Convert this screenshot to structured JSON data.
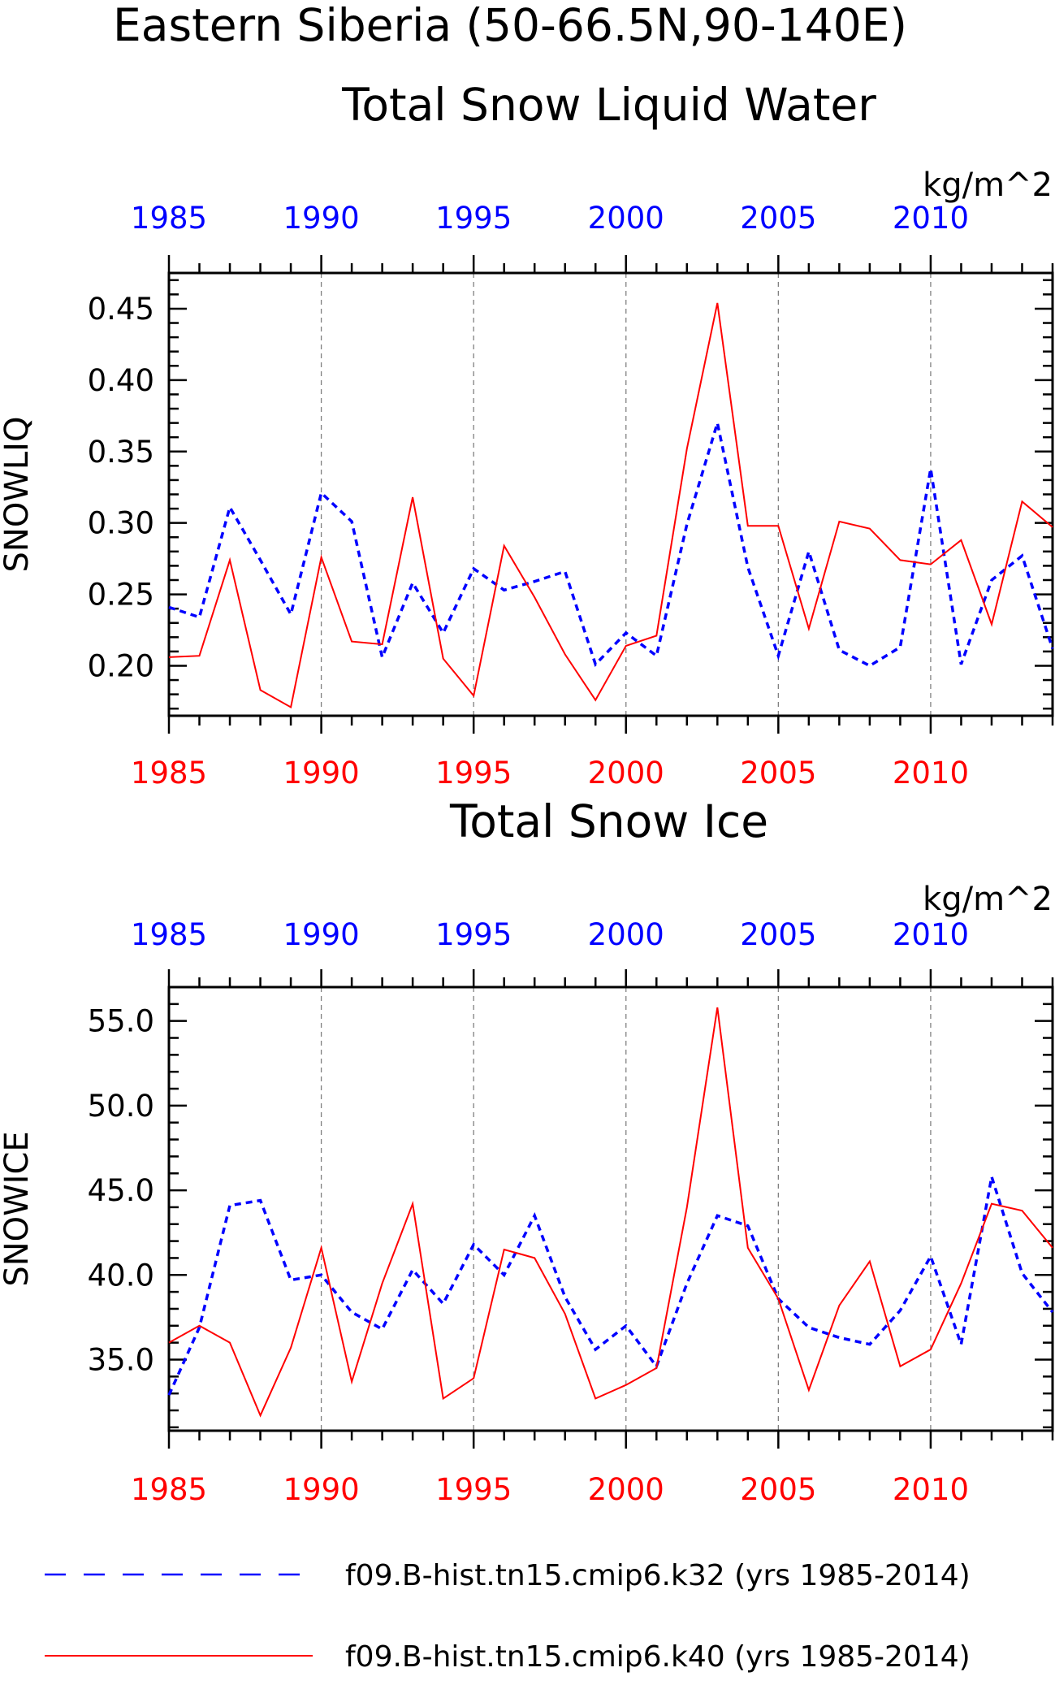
{
  "figure": {
    "title": "Eastern Siberia (50-66.5N,90-140E)"
  },
  "legend": {
    "placement": "bottom-left",
    "items": [
      {
        "label": "f09.B-hist.tn15.cmip6.k32 (yrs 1985-2014)",
        "color": "#0000ff",
        "style": "dashed"
      },
      {
        "label": "f09.B-hist.tn15.cmip6.k40 (yrs 1985-2014)",
        "color": "#ff0000",
        "style": "solid"
      }
    ]
  },
  "colors": {
    "k32": "#0000ff",
    "k40": "#ff0000",
    "axis": "#000000",
    "grid": "#808080"
  },
  "chart_data": [
    {
      "type": "line",
      "title": "Total Snow Liquid Water",
      "units": "kg/m^2",
      "ylabel": "SNOWLIQ",
      "xlim": [
        1985,
        2014
      ],
      "ylim": [
        0.165,
        0.475
      ],
      "yticks": [
        "0.20",
        "0.25",
        "0.30",
        "0.35",
        "0.40",
        "0.45"
      ],
      "xticks": [
        "1985",
        "1990",
        "1995",
        "2000",
        "2005",
        "2010"
      ],
      "grid": "dashed vertical at 1990,1995,2000,2005,2010",
      "x": [
        1985,
        1986,
        1987,
        1988,
        1989,
        1990,
        1991,
        1992,
        1993,
        1994,
        1995,
        1996,
        1997,
        1998,
        1999,
        2000,
        2001,
        2002,
        2003,
        2004,
        2005,
        2006,
        2007,
        2008,
        2009,
        2010,
        2011,
        2012,
        2013,
        2014
      ],
      "series": [
        {
          "name": "f09.B-hist.tn15.cmip6.k32 (yrs 1985-2014)",
          "color": "#0000ff",
          "style": "dashed",
          "values": [
            0.241,
            0.234,
            0.311,
            0.274,
            0.236,
            0.321,
            0.301,
            0.206,
            0.258,
            0.223,
            0.268,
            0.253,
            0.259,
            0.266,
            0.201,
            0.223,
            0.207,
            0.299,
            0.37,
            0.269,
            0.207,
            0.28,
            0.211,
            0.2,
            0.213,
            0.338,
            0.201,
            0.26,
            0.277,
            0.212
          ]
        },
        {
          "name": "f09.B-hist.tn15.cmip6.k40 (yrs 1985-2014)",
          "color": "#ff0000",
          "style": "solid",
          "values": [
            0.206,
            0.207,
            0.274,
            0.183,
            0.171,
            0.276,
            0.217,
            0.215,
            0.318,
            0.205,
            0.179,
            0.284,
            0.248,
            0.208,
            0.176,
            0.214,
            0.221,
            0.352,
            0.454,
            0.298,
            0.298,
            0.226,
            0.301,
            0.296,
            0.274,
            0.271,
            0.288,
            0.229,
            0.315,
            0.297
          ]
        }
      ]
    },
    {
      "type": "line",
      "title": "Total Snow Ice",
      "units": "kg/m^2",
      "ylabel": "SNOWICE",
      "xlim": [
        1985,
        2014
      ],
      "ylim": [
        30.8,
        57.0
      ],
      "yticks": [
        "35.0",
        "40.0",
        "45.0",
        "50.0",
        "55.0"
      ],
      "xticks": [
        "1985",
        "1990",
        "1995",
        "2000",
        "2005",
        "2010"
      ],
      "grid": "dashed vertical at 1990,1995,2000,2005,2010",
      "x": [
        1985,
        1986,
        1987,
        1988,
        1989,
        1990,
        1991,
        1992,
        1993,
        1994,
        1995,
        1996,
        1997,
        1998,
        1999,
        2000,
        2001,
        2002,
        2003,
        2004,
        2005,
        2006,
        2007,
        2008,
        2009,
        2010,
        2011,
        2012,
        2013,
        2014
      ],
      "series": [
        {
          "name": "f09.B-hist.tn15.cmip6.k32 (yrs 1985-2014)",
          "color": "#0000ff",
          "style": "dashed",
          "values": [
            32.9,
            36.9,
            44.1,
            44.4,
            39.7,
            40.0,
            37.8,
            36.8,
            40.3,
            38.3,
            41.8,
            40.0,
            43.5,
            38.7,
            35.6,
            37.0,
            34.6,
            39.5,
            43.5,
            42.9,
            38.6,
            36.9,
            36.3,
            35.9,
            37.9,
            41.1,
            35.9,
            45.8,
            40.1,
            37.8
          ]
        },
        {
          "name": "f09.B-hist.tn15.cmip6.k40 (yrs 1985-2014)",
          "color": "#ff0000",
          "style": "solid",
          "values": [
            36.0,
            37.0,
            36.0,
            31.7,
            35.7,
            41.6,
            33.7,
            39.5,
            44.2,
            32.7,
            33.9,
            41.5,
            41.0,
            37.7,
            32.7,
            33.5,
            34.5,
            44.0,
            55.8,
            41.6,
            38.6,
            33.2,
            38.2,
            40.8,
            34.6,
            35.6,
            39.5,
            44.2,
            43.8,
            41.6
          ]
        }
      ]
    }
  ]
}
